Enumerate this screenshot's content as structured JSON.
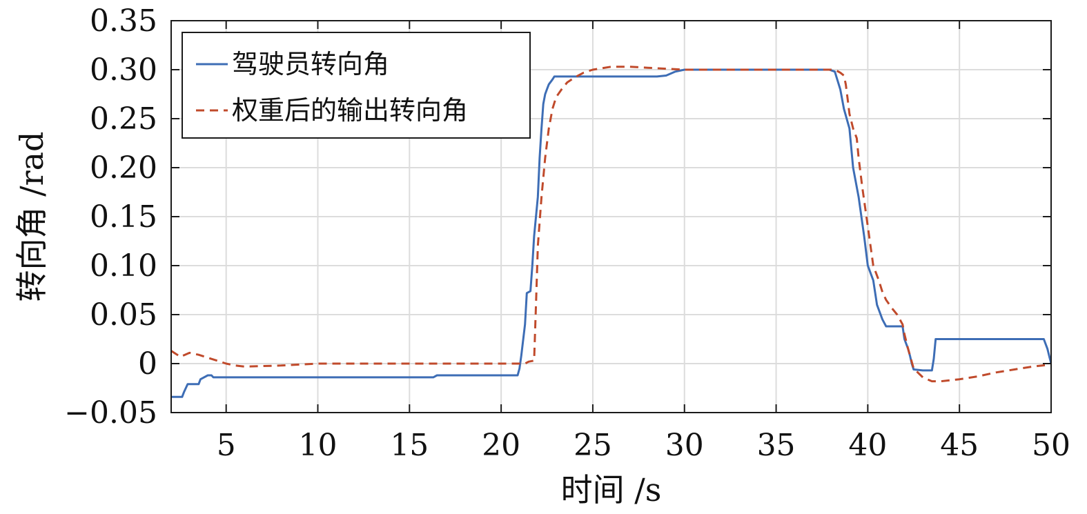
{
  "chart_data": {
    "type": "line",
    "xlabel": "时间 /s",
    "ylabel": "转向角 /rad",
    "xlim": [
      2,
      50
    ],
    "ylim": [
      -0.05,
      0.35
    ],
    "xticks": [
      5,
      10,
      15,
      20,
      25,
      30,
      35,
      40,
      45,
      50
    ],
    "yticks": [
      -0.05,
      0,
      0.05,
      0.1,
      0.15,
      0.2,
      0.25,
      0.3,
      0.35
    ],
    "ytick_labels": [
      "−0.05",
      "0",
      "0.05",
      "0.10",
      "0.15",
      "0.20",
      "0.25",
      "0.30",
      "0.35"
    ],
    "grid": true,
    "legend_position": "top-left",
    "series": [
      {
        "name": "驾驶员转向角",
        "color": "#3d6db5",
        "style": "solid",
        "x": [
          2,
          2.6,
          2.7,
          2.9,
          3.5,
          3.6,
          4.0,
          4.2,
          4.3,
          10,
          16.3,
          16.5,
          20.9,
          21.0,
          21.1,
          21.3,
          21.4,
          21.6,
          21.7,
          21.8,
          22.0,
          22.1,
          22.2,
          22.3,
          22.4,
          22.5,
          22.6,
          22.8,
          22.9,
          23.0,
          28.5,
          29.0,
          29.5,
          30,
          35,
          37.9,
          38.2,
          38.5,
          38.7,
          39.0,
          39.2,
          39.5,
          39.8,
          40.0,
          40.3,
          40.5,
          40.8,
          41.0,
          41.5,
          41.9,
          42.0,
          42.2,
          42.3,
          42.4,
          42.5,
          43.0,
          43.3,
          43.5,
          43.6,
          43.7,
          44.0,
          49.6,
          49.8,
          50.0
        ],
        "y": [
          -0.034,
          -0.034,
          -0.029,
          -0.021,
          -0.021,
          -0.016,
          -0.012,
          -0.012,
          -0.014,
          -0.014,
          -0.014,
          -0.012,
          -0.012,
          -0.005,
          0.008,
          0.04,
          0.072,
          0.074,
          0.1,
          0.13,
          0.17,
          0.21,
          0.24,
          0.265,
          0.275,
          0.28,
          0.285,
          0.29,
          0.293,
          0.293,
          0.293,
          0.294,
          0.298,
          0.3,
          0.3,
          0.3,
          0.298,
          0.28,
          0.26,
          0.24,
          0.2,
          0.17,
          0.13,
          0.1,
          0.085,
          0.06,
          0.045,
          0.038,
          0.038,
          0.038,
          0.025,
          0.015,
          0.008,
          0.0,
          -0.006,
          -0.007,
          -0.007,
          -0.007,
          0.005,
          0.025,
          0.025,
          0.025,
          0.015,
          0.0
        ]
      },
      {
        "name": "权重后的输出转向角",
        "color": "#c04a2b",
        "style": "dashed",
        "x": [
          2,
          2.5,
          3.0,
          3.5,
          4.0,
          4.5,
          5.0,
          5.5,
          6,
          8,
          10,
          15,
          19,
          21.0,
          21.3,
          21.5,
          21.8,
          21.9,
          22.0,
          22.2,
          22.4,
          22.6,
          22.8,
          23.0,
          23.3,
          23.6,
          24.0,
          24.5,
          25,
          26,
          27,
          28,
          29,
          30,
          33,
          35,
          37,
          38.0,
          38.3,
          38.5,
          38.7,
          38.8,
          38.9,
          39.0,
          39.2,
          39.4,
          39.5,
          39.7,
          40.0,
          40.3,
          40.6,
          40.8,
          41.0,
          41.3,
          41.6,
          41.9,
          42.0,
          42.2,
          42.5,
          43.0,
          43.5,
          44.0,
          45,
          46,
          47,
          48,
          49,
          50
        ],
        "y": [
          0.013,
          0.007,
          0.011,
          0.009,
          0.006,
          0.003,
          0.0,
          -0.002,
          -0.003,
          -0.002,
          0.0,
          0.0,
          0.0,
          0.0,
          0.0,
          0.002,
          0.003,
          0.06,
          0.12,
          0.17,
          0.21,
          0.24,
          0.26,
          0.272,
          0.28,
          0.287,
          0.292,
          0.297,
          0.3,
          0.303,
          0.303,
          0.302,
          0.301,
          0.3,
          0.3,
          0.3,
          0.3,
          0.3,
          0.299,
          0.297,
          0.294,
          0.285,
          0.27,
          0.255,
          0.24,
          0.23,
          0.21,
          0.18,
          0.14,
          0.1,
          0.085,
          0.073,
          0.065,
          0.057,
          0.05,
          0.04,
          0.03,
          0.015,
          -0.005,
          -0.014,
          -0.018,
          -0.018,
          -0.016,
          -0.013,
          -0.009,
          -0.006,
          -0.003,
          -0.001
        ]
      }
    ]
  }
}
